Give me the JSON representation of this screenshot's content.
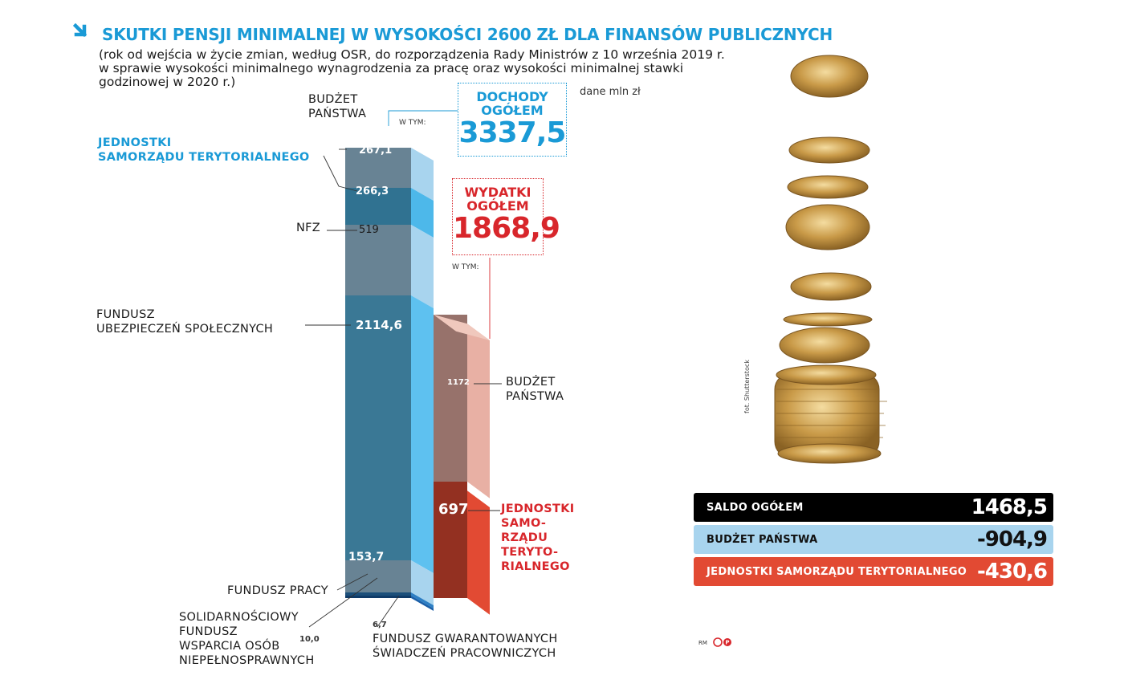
{
  "title": "SKUTKI PENSJI MINIMALNEJ W WYSOKOŚCI 2600 ZŁ DLA FINANSÓW PUBLICZNYCH",
  "subtitle": "(rok od wejścia w życie zmian, według OSR, do rozporządzenia Rady Ministrów z 10 września 2019 r.\nw sprawie wysokości minimalnego wynagrodzenia za pracę oraz wysokości minimalnej stawki\ngodzinowej w 2020 r.)",
  "unit": "dane mln zł",
  "income_box": {
    "title": "DOCHODY\nOGÓŁEM",
    "value": "3337,5",
    "w_tym": "W TYM:"
  },
  "expense_box": {
    "title": "WYDATKI\nOGÓŁEM",
    "value": "1868,9",
    "w_tym": "W TYM:"
  },
  "chart_data": {
    "type": "bar",
    "stacked": true,
    "categories": [
      "Dochody ogółem",
      "Wydatki ogółem"
    ],
    "totals": [
      3337.5,
      1868.9
    ],
    "income": [
      {
        "name": "BUDŻET\nPAŃSTWA",
        "label": "267,1",
        "value": 267.1,
        "color": "#a8d4ee"
      },
      {
        "name": "JEDNOSTKI\nSAMORZĄDU TERYTORIALNEGO",
        "label": "266,3",
        "value": 266.3,
        "color": "#4db8ea"
      },
      {
        "name": "NFZ",
        "label": "519",
        "value": 519,
        "color": "#a8d4ee"
      },
      {
        "name": "FUNDUSZ\nUBEZPIECZEŃ SPOŁECZNYCH",
        "label": "2114,6",
        "value": 2114.6,
        "color": "#5ec1f0"
      },
      {
        "name": "FUNDUSZ PRACY",
        "label": "153,7",
        "value": 153.7,
        "color": "#a8d4ee"
      },
      {
        "name": "SOLIDARNOŚCIOWY\nFUNDUSZ\nWSPARCIA OSÓB\nNIEPEŁNOSPRAWNYCH",
        "label": "10,0",
        "value": 10.0,
        "color": "#2d7fc4"
      },
      {
        "name": "FUNDUSZ GWARANTOWANYCH\nŚWIADCZEŃ PRACOWNICZYCH",
        "label": "6,7",
        "value": 6.7,
        "color": "#1a5fa8"
      }
    ],
    "expenses": [
      {
        "name": "BUDŻET\nPAŃSTWA",
        "label": "1172",
        "value": 1172,
        "color": "#e8b0a4"
      },
      {
        "name": "JEDNOSTKI\nSAMO-\nRZĄDU\nTERYTO-\nRIALNEGO",
        "label": "697",
        "value": 697,
        "color": "#e24a33"
      }
    ]
  },
  "saldo": [
    {
      "label": "SALDO OGÓŁEM",
      "value": "1468,5",
      "bg": "#000000",
      "fg": "#ffffff"
    },
    {
      "label": "BUDŻET PAŃSTWA",
      "value": "-904,9",
      "bg": "#a8d4ee",
      "fg": "#111111"
    },
    {
      "label": "JEDNOSTKI SAMORZĄDU TERYTORIALNEGO",
      "value": "-430,6",
      "bg": "#e24a33",
      "fg": "#ffffff"
    }
  ],
  "photo_credit": "fot. Shutterstock",
  "author": "RM",
  "colors": {
    "accent": "#1a9ad6",
    "red": "#d8262b"
  }
}
